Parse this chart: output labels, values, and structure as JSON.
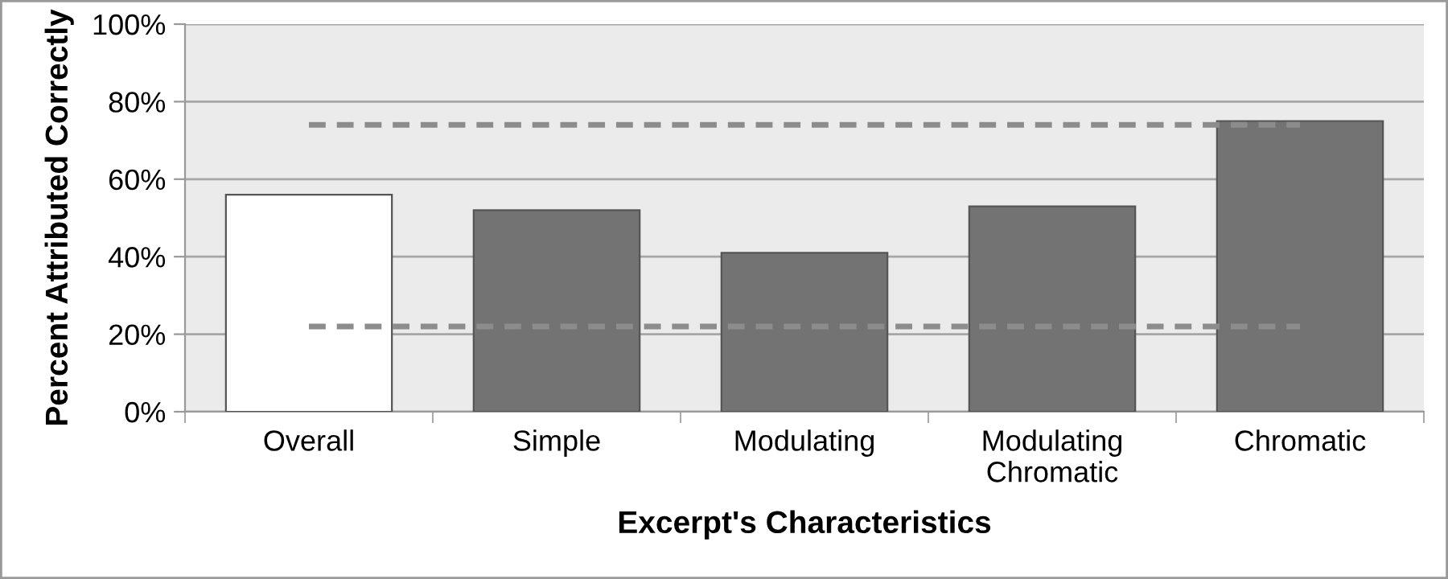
{
  "chart_data": {
    "type": "bar",
    "xlabel": "Excerpt's Characteristics",
    "ylabel": "Percent Attributed Correctly",
    "categories": [
      "Overall",
      "Simple",
      "Modulating",
      "Modulating\nChromatic",
      "Chromatic"
    ],
    "values": [
      56,
      52,
      41,
      53,
      75
    ],
    "colors": [
      "#ffffff",
      "#737373",
      "#737373",
      "#737373",
      "#737373"
    ],
    "ylim": [
      0,
      100
    ],
    "yticks": [
      {
        "value": 0,
        "label": "0%"
      },
      {
        "value": 20,
        "label": "20%"
      },
      {
        "value": 40,
        "label": "40%"
      },
      {
        "value": 60,
        "label": "60%"
      },
      {
        "value": 80,
        "label": "80%"
      },
      {
        "value": 100,
        "label": "100%"
      }
    ],
    "grid": "y",
    "ref_lines": [
      {
        "axis": "y",
        "value": 74,
        "label": null,
        "color": "#8c8c8c",
        "line_style": "dashed"
      },
      {
        "axis": "y",
        "value": 22,
        "label": null,
        "color": "#8c8c8c",
        "line_style": "dashed"
      }
    ]
  }
}
